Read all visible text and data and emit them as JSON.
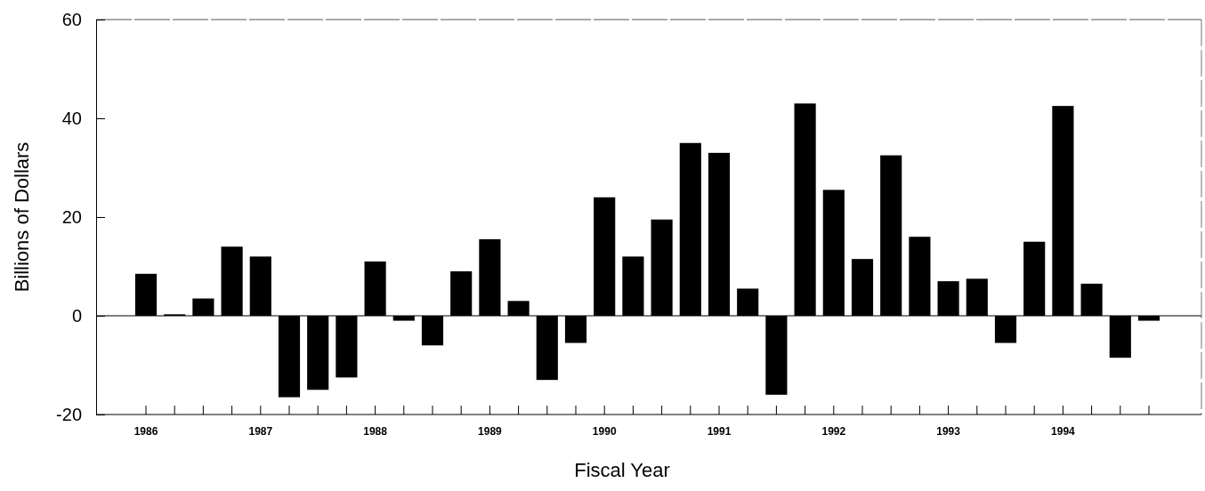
{
  "chart_data": {
    "type": "bar",
    "xlabel": "Fiscal Year",
    "ylabel": "Billions of Dollars",
    "categories": [
      "1986",
      null,
      null,
      null,
      "1987",
      null,
      null,
      null,
      "1988",
      null,
      null,
      null,
      "1989",
      null,
      null,
      null,
      "1990",
      null,
      null,
      null,
      "1991",
      null,
      null,
      null,
      "1992",
      null,
      null,
      null,
      "1993",
      null,
      null,
      null,
      "1994",
      null,
      null,
      null
    ],
    "values": [
      8.5,
      0.3,
      3.5,
      14,
      12,
      -16.5,
      -15,
      -12.5,
      11,
      -1,
      -6,
      9,
      15.5,
      3,
      -13,
      -5.5,
      24,
      12,
      19.5,
      35,
      33,
      5.5,
      -16,
      43,
      25.5,
      11.5,
      32.5,
      16,
      7,
      7.5,
      -5.5,
      15,
      42.5,
      6.5,
      -8.5,
      -1
    ],
    "color": "#000000",
    "ylim": [
      -20,
      60
    ],
    "yticks": [
      -20,
      0,
      20,
      40,
      60
    ]
  }
}
